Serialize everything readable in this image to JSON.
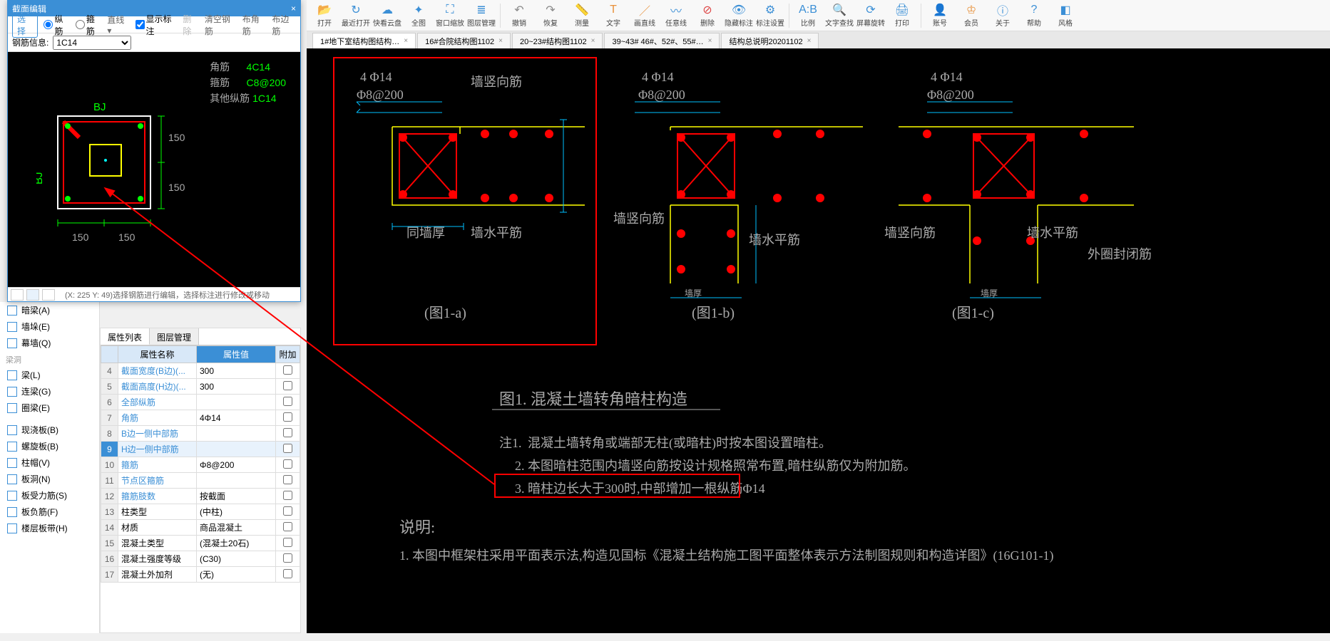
{
  "section_panel": {
    "title": "截面编辑",
    "select_label": "选择",
    "radio_zong": "纵筋",
    "radio_gu": "箍筋",
    "dd_line": "直线",
    "cb_show": "显示标注",
    "lk_del": "删除",
    "lk_clear": "清空钢筋",
    "lk_corner": "布角筋",
    "lk_edge": "布边筋",
    "rebar_label": "钢筋信息:",
    "rebar_value": "1C14",
    "legend_corner_label": "角筋",
    "legend_corner_val": "4C14",
    "legend_stirrup_label": "箍筋",
    "legend_stirrup_val": "C8@200",
    "legend_other_label": "其他纵筋",
    "legend_other_val": "1C14",
    "bj_label": "BJ",
    "dim": "150",
    "status": "(X: 225 Y: 49)选择钢筋进行编辑，选择标注进行修改或移动"
  },
  "cat_tree": {
    "items1": [
      {
        "label": "暗梁(A)"
      },
      {
        "label": "墙垛(E)"
      },
      {
        "label": "幕墙(Q)"
      }
    ],
    "grp2": "梁洞",
    "items2": [
      {
        "label": "梁(L)"
      },
      {
        "label": "连梁(G)"
      },
      {
        "label": "圈梁(E)"
      }
    ],
    "items3": [
      {
        "label": "现浇板(B)"
      },
      {
        "label": "螺旋板(B)"
      },
      {
        "label": "柱帽(V)"
      },
      {
        "label": "板洞(N)"
      },
      {
        "label": "板受力筋(S)"
      },
      {
        "label": "板负筋(F)"
      },
      {
        "label": "楼层板带(H)"
      }
    ]
  },
  "prop_panel": {
    "tab_attr": "属性列表",
    "tab_layer": "图层管理",
    "h_name": "属性名称",
    "h_val": "属性值",
    "h_ext": "附加",
    "rows": [
      {
        "i": "4",
        "n": "截面宽度(B边)(...",
        "v": "300",
        "link": true
      },
      {
        "i": "5",
        "n": "截面高度(H边)(...",
        "v": "300",
        "link": true
      },
      {
        "i": "6",
        "n": "全部纵筋",
        "v": "",
        "link": true
      },
      {
        "i": "7",
        "n": "角筋",
        "v": "4Φ14",
        "link": true
      },
      {
        "i": "8",
        "n": "B边一侧中部筋",
        "v": "",
        "link": true
      },
      {
        "i": "9",
        "n": "H边一侧中部筋",
        "v": "",
        "link": true,
        "sel": true
      },
      {
        "i": "10",
        "n": "箍筋",
        "v": "Φ8@200",
        "link": true
      },
      {
        "i": "11",
        "n": "节点区箍筋",
        "v": "",
        "link": true
      },
      {
        "i": "12",
        "n": "箍筋肢数",
        "v": "按截面",
        "link": true
      },
      {
        "i": "13",
        "n": "柱类型",
        "v": "(中柱)",
        "link": false
      },
      {
        "i": "14",
        "n": "材质",
        "v": "商品混凝土",
        "link": false
      },
      {
        "i": "15",
        "n": "混凝土类型",
        "v": "(混凝土20石)",
        "link": false
      },
      {
        "i": "16",
        "n": "混凝土强度等级",
        "v": "(C30)",
        "link": false
      },
      {
        "i": "17",
        "n": "混凝土外加剂",
        "v": "(无)",
        "link": false
      }
    ]
  },
  "ribbon": [
    {
      "label": "打开",
      "glyph": "📂",
      "cls": ""
    },
    {
      "label": "最近打开",
      "glyph": "↻",
      "cls": ""
    },
    {
      "label": "快看云盘",
      "glyph": "☁",
      "cls": ""
    },
    {
      "label": "全图",
      "glyph": "✦",
      "cls": ""
    },
    {
      "label": "窗口缩放",
      "glyph": "⛶",
      "cls": ""
    },
    {
      "label": "图层管理",
      "glyph": "≣",
      "cls": ""
    },
    {
      "sep": true
    },
    {
      "label": "撤销",
      "glyph": "↶",
      "cls": "gr"
    },
    {
      "label": "恢复",
      "glyph": "↷",
      "cls": "gr"
    },
    {
      "label": "测量",
      "glyph": "📏",
      "cls": ""
    },
    {
      "label": "文字",
      "glyph": "T",
      "cls": "org"
    },
    {
      "label": "画直线",
      "glyph": "／",
      "cls": "org"
    },
    {
      "label": "任意线",
      "glyph": "〰",
      "cls": ""
    },
    {
      "label": "删除",
      "glyph": "⊘",
      "cls": "red"
    },
    {
      "label": "隐藏标注",
      "glyph": "👁",
      "cls": ""
    },
    {
      "label": "标注设置",
      "glyph": "⚙",
      "cls": ""
    },
    {
      "sep": true
    },
    {
      "label": "比例",
      "glyph": "A:B",
      "cls": ""
    },
    {
      "label": "文字查找",
      "glyph": "🔍",
      "cls": ""
    },
    {
      "label": "屏幕旋转",
      "glyph": "⟳",
      "cls": ""
    },
    {
      "label": "打印",
      "glyph": "🖨",
      "cls": ""
    },
    {
      "sep": true
    },
    {
      "label": "账号",
      "glyph": "👤",
      "cls": ""
    },
    {
      "label": "会员",
      "glyph": "♔",
      "cls": "org"
    },
    {
      "label": "关于",
      "glyph": "ⓘ",
      "cls": ""
    },
    {
      "label": "帮助",
      "glyph": "?",
      "cls": ""
    },
    {
      "label": "风格",
      "glyph": "◧",
      "cls": ""
    }
  ],
  "tabs": [
    {
      "label": "1#地下室结构图结构…",
      "active": true
    },
    {
      "label": "16#合院结构图1102"
    },
    {
      "label": "20~23#结构图1102"
    },
    {
      "label": "39~43# 46#、52#、55#…"
    },
    {
      "label": "结构总说明20201102"
    }
  ],
  "cad": {
    "detail_spec1": "4 Φ14",
    "detail_spec2": "Φ8@200",
    "lab_vwall": "墙竖向筋",
    "lab_hwall": "墙水平筋",
    "lab_thick": "同墙厚",
    "lab_thick2": "墙厚",
    "lab_outer": "外圈封闭筋",
    "fig_a": "(图1-a)",
    "fig_b": "(图1-b)",
    "fig_c": "(图1-c)",
    "title": "图1. 混凝土墙转角暗柱构造",
    "note_head": "注1.",
    "note1": "混凝土墙转角或端部无柱(或暗柱)时按本图设置暗柱。",
    "note2": "2. 本图暗柱范围内墙竖向筋按设计规格照常布置,暗柱纵筋仅为附加筋。",
    "note3": "3. 暗柱边长大于300时,中部增加一根纵筋Φ14",
    "expl_head": "说明:",
    "expl1": "1. 本图中框架柱采用平面表示法,构造见国标《混凝土结构施工图平面整体表示方法制图规则和构造详图》(16G101-1)",
    "colors": {
      "rebar": "#ff0000",
      "dim": "#00c0ff",
      "form": "#ffff00",
      "text": "#b0b0b0",
      "green": "#00ff00"
    }
  }
}
